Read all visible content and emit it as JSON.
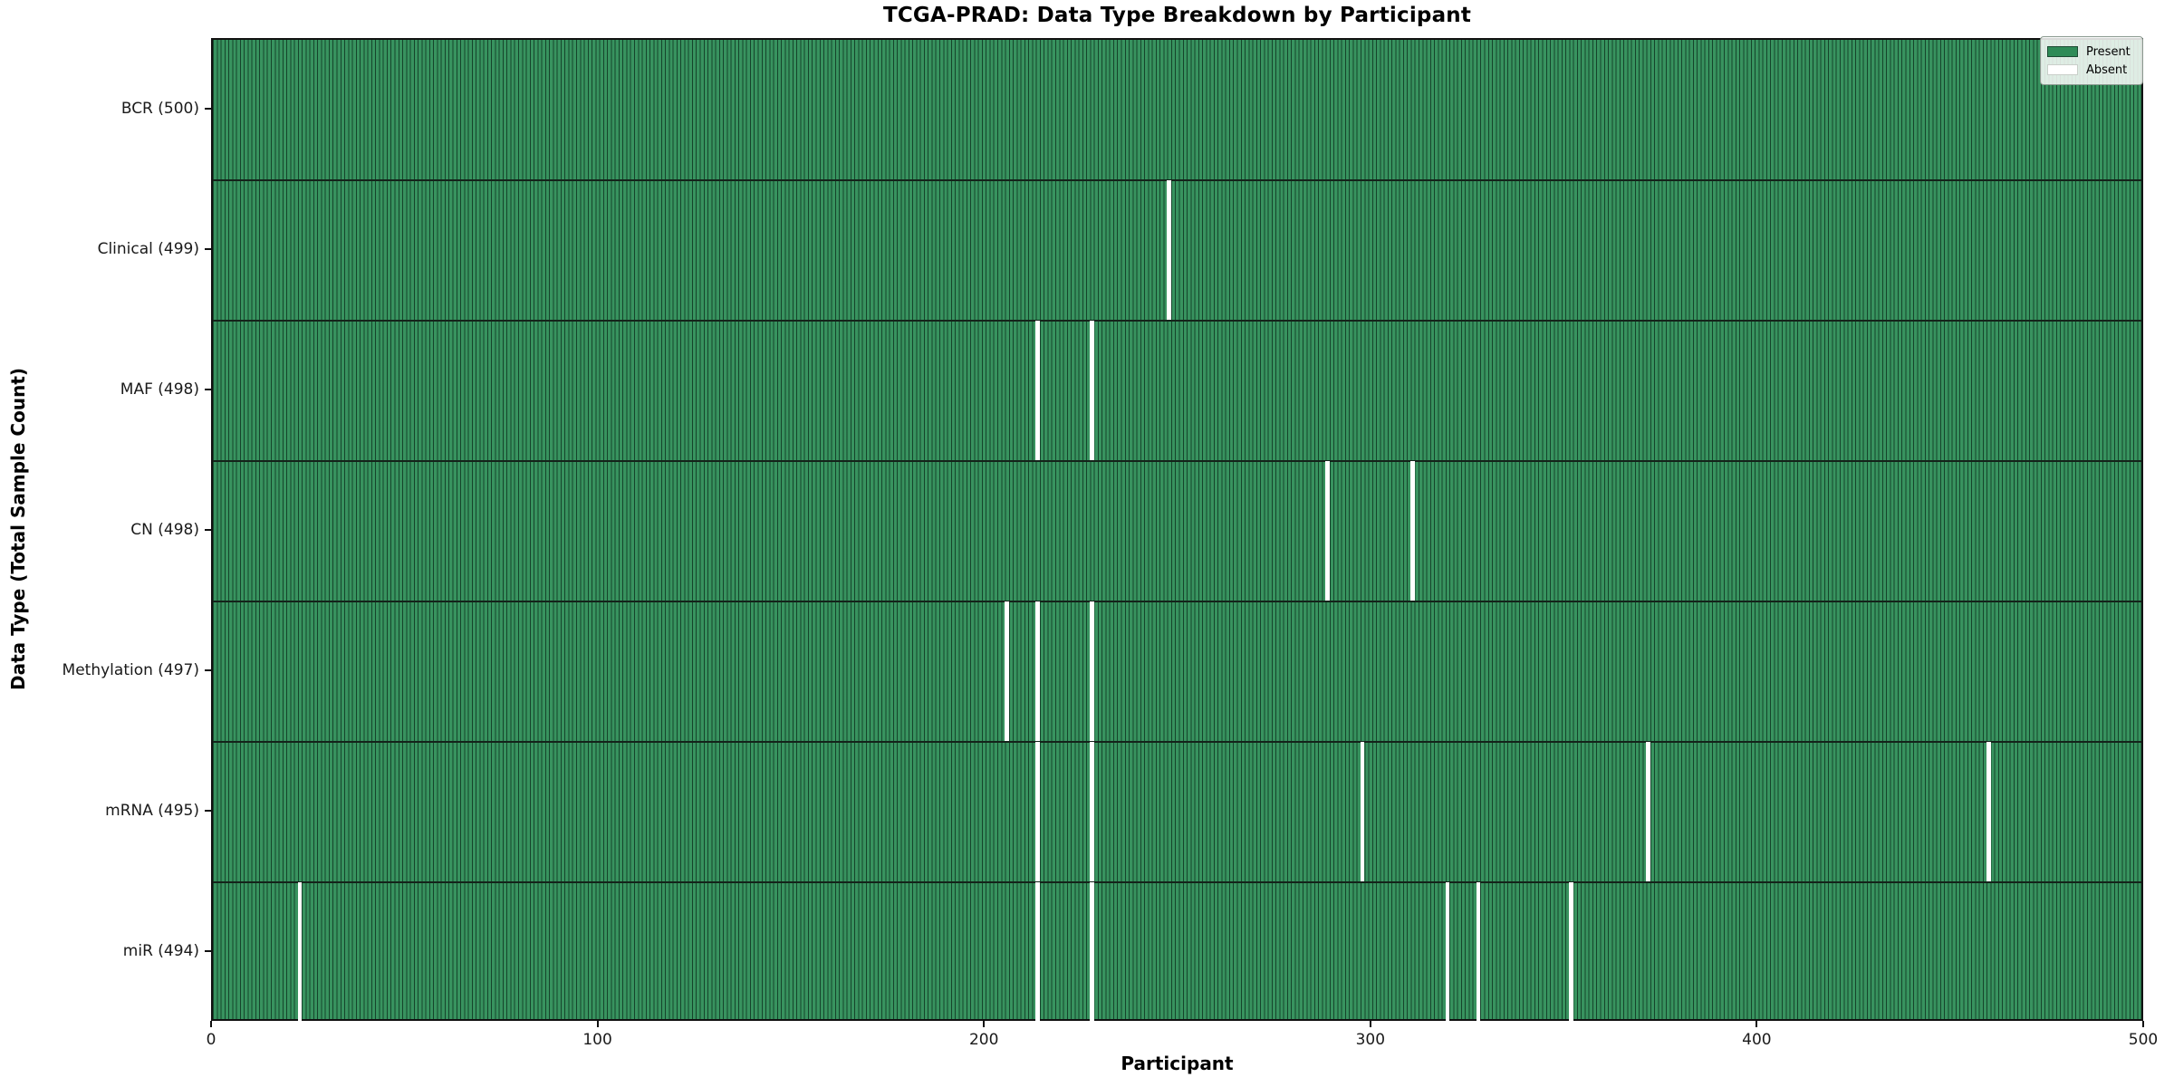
{
  "title": "TCGA-PRAD: Data Type Breakdown by Participant",
  "xlabel": "Participant",
  "ylabel": "Data Type (Total Sample Count)",
  "colors": {
    "present": "#2e8b57",
    "present_fill": "#38935f",
    "bar_edge": "#1c4a33",
    "absent": "#ffffff"
  },
  "chart_data": {
    "type": "heatmap",
    "title": "TCGA-PRAD: Data Type Breakdown by Participant",
    "xlabel": "Participant",
    "ylabel": "Data Type (Total Sample Count)",
    "x_range": [
      0,
      500
    ],
    "x_ticks": [
      0,
      100,
      200,
      300,
      400,
      500
    ],
    "n_participants": 500,
    "grid": false,
    "legend_position": "upper right",
    "legend_entries": [
      {
        "label": "Present",
        "color": "#2e8b57"
      },
      {
        "label": "Absent",
        "color": "#ffffff"
      }
    ],
    "rows": [
      {
        "data_type": "BCR",
        "label": "BCR (500)",
        "total": 500,
        "absent_participants": []
      },
      {
        "data_type": "Clinical",
        "label": "Clinical (499)",
        "total": 499,
        "absent_participants": [
          247
        ]
      },
      {
        "data_type": "MAF",
        "label": "MAF (498)",
        "total": 498,
        "absent_participants": [
          213,
          227
        ]
      },
      {
        "data_type": "CN",
        "label": "CN (498)",
        "total": 498,
        "absent_participants": [
          288,
          310
        ]
      },
      {
        "data_type": "Methylation",
        "label": "Methylation (497)",
        "total": 497,
        "absent_participants": [
          205,
          213,
          227
        ]
      },
      {
        "data_type": "mRNA",
        "label": "mRNA (495)",
        "total": 495,
        "absent_participants": [
          213,
          227,
          297,
          371,
          459
        ]
      },
      {
        "data_type": "miR",
        "label": "miR (494)",
        "total": 494,
        "absent_participants": [
          22,
          213,
          227,
          319,
          327,
          351
        ]
      }
    ]
  }
}
